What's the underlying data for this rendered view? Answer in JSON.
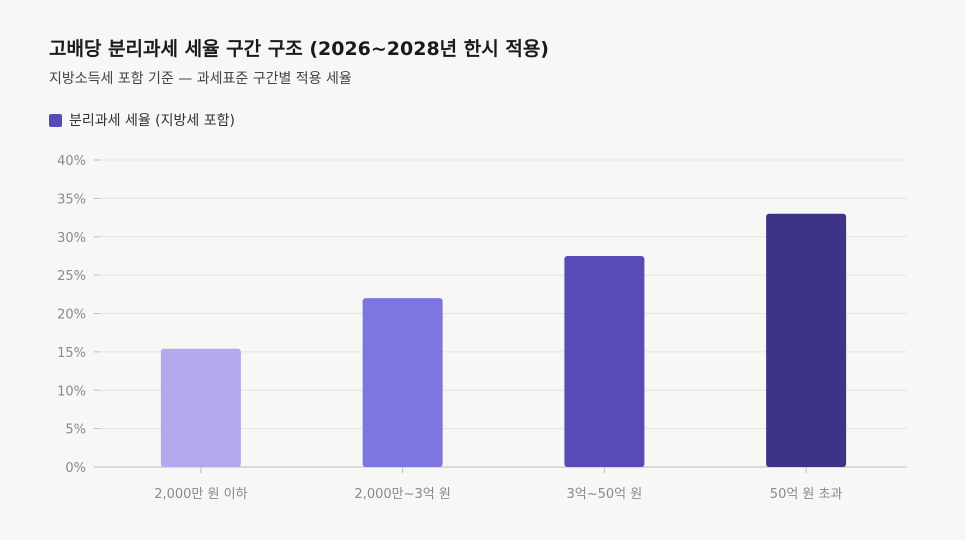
{
  "chart_data": {
    "type": "bar",
    "title": "고배당 분리과세 세율 구간 구조 (2026~2028년 한시 적용)",
    "subtitle": "지방소득세 포함 기준 — 과세표준 구간별 적용 세율",
    "categories": [
      "2,000만 원 이하",
      "2,000만~3억 원",
      "3억~50억 원",
      "50억 원 초과"
    ],
    "series": [
      {
        "name": "분리과세 세율 (지방세 포함)",
        "values": [
          15.4,
          22,
          27.5,
          33
        ]
      }
    ],
    "bar_colors": [
      "#b3a9ee",
      "#7e76e0",
      "#584bb8",
      "#3e3487"
    ],
    "legend_color": "#584bb8",
    "ylim": [
      0,
      40
    ],
    "y_ticks": [
      0,
      5,
      10,
      15,
      20,
      25,
      30,
      35,
      40
    ],
    "y_tick_suffix": "%",
    "grid": true,
    "legend_position": "top-left",
    "xlabel": "",
    "ylabel": ""
  }
}
